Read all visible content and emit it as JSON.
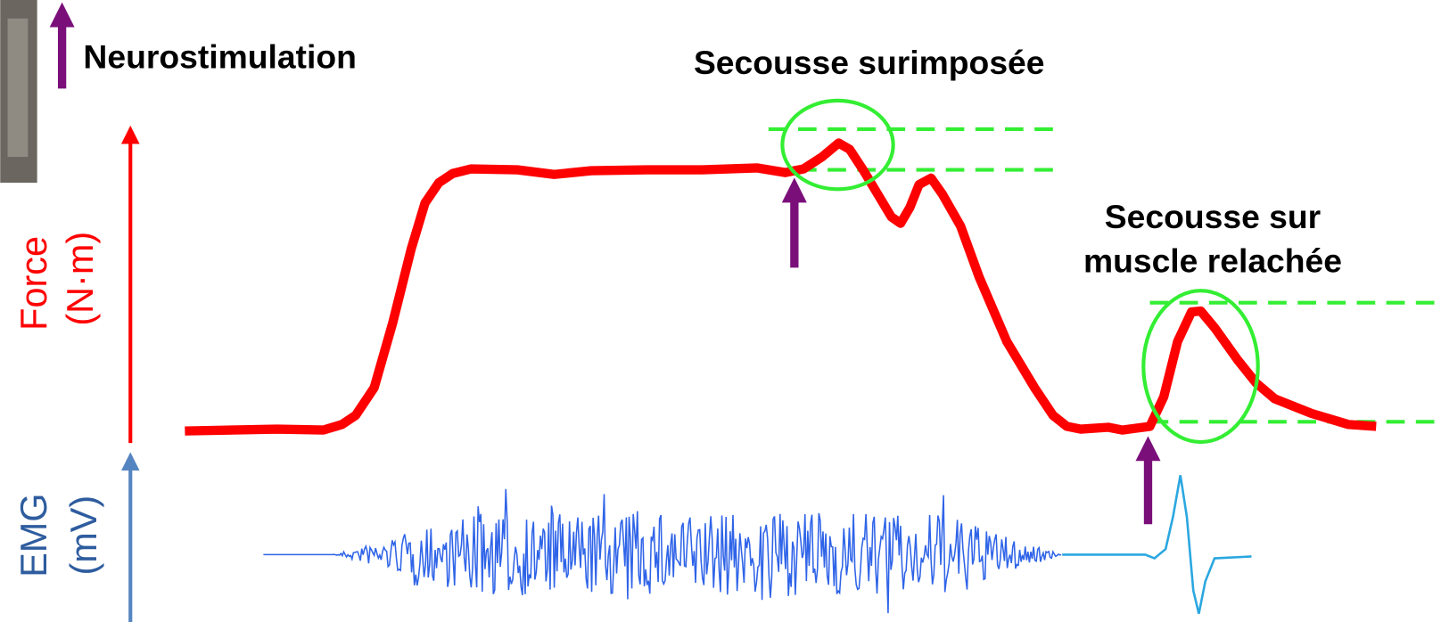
{
  "legend": {
    "label": "Neurostimulation"
  },
  "annotations": [
    {
      "lines": [
        "Secousse surimposée"
      ]
    },
    {
      "lines": [
        "Secousse sur",
        "muscle relachée"
      ]
    }
  ],
  "axes": {
    "force": {
      "label": "Force",
      "unit": "(N·m)"
    },
    "emg": {
      "label": "EMG",
      "unit": "(mV)"
    }
  }
}
